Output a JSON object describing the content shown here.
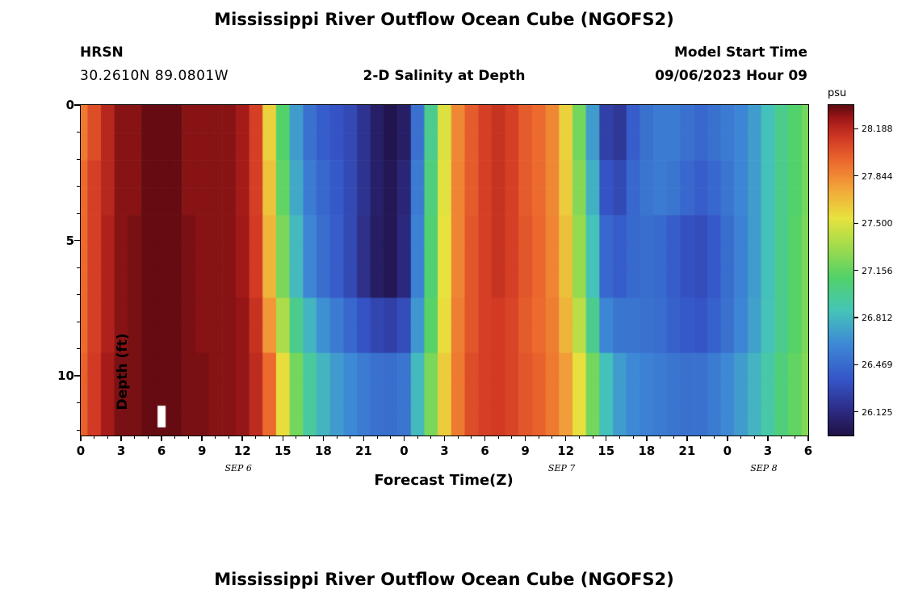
{
  "titles": {
    "main": "Mississippi River Outflow Ocean Cube (NGOFS2)",
    "station": "HRSN",
    "coords": "30.2610N  89.0801W",
    "subtitle": "2-D Salinity at Depth",
    "model_start_label": "Model Start Time",
    "model_start_value": "09/06/2023 Hour 09",
    "xlabel": "Forecast Time(Z)",
    "ylabel": "Depth (ft)",
    "colorbar_label": "psu",
    "next_panel_title": "Mississippi River Outflow Ocean Cube (NGOFS2)"
  },
  "chart_data": {
    "type": "heatmap",
    "title": "2-D Salinity at Depth",
    "xlabel": "Forecast Time(Z)",
    "ylabel": "Depth (ft)",
    "units": "psu",
    "time_range": [
      0,
      54
    ],
    "depth_range": [
      0,
      12.2
    ],
    "value_range": [
      25.953,
      28.36
    ],
    "x_minor_step": 1,
    "y_minor_step": 1,
    "x_ticks": [
      {
        "t": 0,
        "label": "0"
      },
      {
        "t": 3,
        "label": "3"
      },
      {
        "t": 6,
        "label": "6"
      },
      {
        "t": 9,
        "label": "9"
      },
      {
        "t": 12,
        "label": "12"
      },
      {
        "t": 15,
        "label": "15"
      },
      {
        "t": 18,
        "label": "18"
      },
      {
        "t": 21,
        "label": "21"
      },
      {
        "t": 24,
        "label": "0"
      },
      {
        "t": 27,
        "label": "3"
      },
      {
        "t": 30,
        "label": "6"
      },
      {
        "t": 33,
        "label": "9"
      },
      {
        "t": 36,
        "label": "12"
      },
      {
        "t": 39,
        "label": "15"
      },
      {
        "t": 42,
        "label": "18"
      },
      {
        "t": 45,
        "label": "21"
      },
      {
        "t": 48,
        "label": "0"
      },
      {
        "t": 51,
        "label": "3"
      },
      {
        "t": 54,
        "label": "6"
      }
    ],
    "date_labels": [
      {
        "t": 11.7,
        "label": "SEP 6"
      },
      {
        "t": 35.7,
        "label": "SEP 7"
      },
      {
        "t": 50.7,
        "label": "SEP 8"
      }
    ],
    "y_ticks": [
      {
        "d": 0,
        "label": "0"
      },
      {
        "d": 5,
        "label": "5"
      },
      {
        "d": 10,
        "label": "10"
      }
    ],
    "colorbar_ticks": [
      {
        "v": 28.188,
        "label": "28.188"
      },
      {
        "v": 27.844,
        "label": "27.844"
      },
      {
        "v": 27.5,
        "label": "27.500"
      },
      {
        "v": 27.156,
        "label": "27.156"
      },
      {
        "v": 26.812,
        "label": "26.812"
      },
      {
        "v": 26.469,
        "label": "26.469"
      },
      {
        "v": 26.125,
        "label": "26.125"
      }
    ],
    "colormap": [
      {
        "f": 0.0,
        "c": "#201045"
      },
      {
        "f": 0.08,
        "c": "#2d2d86"
      },
      {
        "f": 0.17,
        "c": "#3555c8"
      },
      {
        "f": 0.28,
        "c": "#3e8ad6"
      },
      {
        "f": 0.38,
        "c": "#45c5b8"
      },
      {
        "f": 0.48,
        "c": "#52d268"
      },
      {
        "f": 0.58,
        "c": "#a8dc4a"
      },
      {
        "f": 0.66,
        "c": "#e8e23e"
      },
      {
        "f": 0.75,
        "c": "#f2a43a"
      },
      {
        "f": 0.83,
        "c": "#ec6a2e"
      },
      {
        "f": 0.9,
        "c": "#d23a24"
      },
      {
        "f": 0.96,
        "c": "#a01818"
      },
      {
        "f": 1.0,
        "c": "#5e0a10"
      }
    ],
    "missing_cells": [
      {
        "t": 6,
        "depth_top": 11.1,
        "depth_bottom": 11.9,
        "half_width_hours": 0.3
      }
    ],
    "grid": {
      "rows": 12,
      "cols": 55,
      "values": [
        [
          27.9,
          28.05,
          28.2,
          28.3,
          28.3,
          28.35,
          28.35,
          28.35,
          28.3,
          28.3,
          28.3,
          28.3,
          28.25,
          28.1,
          27.6,
          27.1,
          26.7,
          26.5,
          26.4,
          26.35,
          26.3,
          26.18,
          26.05,
          25.98,
          26.05,
          26.5,
          27.0,
          27.5,
          27.85,
          28.0,
          28.1,
          28.15,
          28.1,
          28.0,
          27.95,
          27.85,
          27.6,
          27.2,
          26.7,
          26.25,
          26.2,
          26.4,
          26.5,
          26.55,
          26.55,
          26.5,
          26.45,
          26.5,
          26.55,
          26.6,
          26.7,
          26.85,
          27.0,
          27.1,
          27.2
        ],
        [
          27.9,
          28.05,
          28.2,
          28.3,
          28.3,
          28.35,
          28.35,
          28.35,
          28.3,
          28.3,
          28.3,
          28.3,
          28.25,
          28.1,
          27.6,
          27.1,
          26.7,
          26.5,
          26.4,
          26.35,
          26.3,
          26.18,
          26.05,
          25.98,
          26.05,
          26.5,
          27.0,
          27.5,
          27.85,
          28.0,
          28.1,
          28.15,
          28.1,
          28.0,
          27.95,
          27.85,
          27.6,
          27.2,
          26.7,
          26.25,
          26.2,
          26.4,
          26.5,
          26.55,
          26.55,
          26.5,
          26.45,
          26.5,
          26.55,
          26.6,
          26.7,
          26.85,
          27.0,
          27.1,
          27.2
        ],
        [
          27.95,
          28.1,
          28.2,
          28.3,
          28.3,
          28.35,
          28.35,
          28.35,
          28.3,
          28.3,
          28.3,
          28.3,
          28.25,
          28.1,
          27.65,
          27.15,
          26.75,
          26.55,
          26.45,
          26.38,
          26.3,
          26.18,
          26.06,
          26.0,
          26.1,
          26.55,
          27.05,
          27.52,
          27.86,
          28.0,
          28.1,
          28.15,
          28.1,
          28.0,
          27.95,
          27.85,
          27.62,
          27.25,
          26.78,
          26.35,
          26.3,
          26.45,
          26.52,
          26.55,
          26.52,
          26.45,
          26.4,
          26.45,
          26.52,
          26.6,
          26.7,
          26.85,
          27.0,
          27.1,
          27.2
        ],
        [
          27.95,
          28.1,
          28.2,
          28.3,
          28.3,
          28.35,
          28.35,
          28.35,
          28.3,
          28.3,
          28.3,
          28.3,
          28.25,
          28.1,
          27.65,
          27.15,
          26.75,
          26.55,
          26.45,
          26.38,
          26.3,
          26.18,
          26.06,
          26.0,
          26.1,
          26.55,
          27.05,
          27.52,
          27.86,
          28.0,
          28.1,
          28.15,
          28.1,
          28.0,
          27.95,
          27.85,
          27.62,
          27.25,
          26.78,
          26.35,
          26.3,
          26.45,
          26.52,
          26.55,
          26.52,
          26.45,
          26.4,
          26.45,
          26.52,
          26.6,
          26.7,
          26.85,
          27.0,
          27.1,
          27.2
        ],
        [
          27.95,
          28.1,
          28.22,
          28.3,
          28.32,
          28.35,
          28.35,
          28.35,
          28.32,
          28.3,
          28.3,
          28.3,
          28.26,
          28.12,
          27.7,
          27.22,
          26.82,
          26.6,
          26.48,
          26.4,
          26.3,
          26.16,
          26.04,
          26.0,
          26.12,
          26.58,
          27.08,
          27.54,
          27.86,
          28.02,
          28.1,
          28.15,
          28.1,
          28.02,
          27.96,
          27.86,
          27.66,
          27.3,
          26.86,
          26.45,
          26.4,
          26.46,
          26.48,
          26.46,
          26.4,
          26.34,
          26.32,
          26.38,
          26.48,
          26.58,
          26.7,
          26.85,
          27.0,
          27.12,
          27.22
        ],
        [
          27.95,
          28.1,
          28.22,
          28.3,
          28.32,
          28.35,
          28.35,
          28.35,
          28.32,
          28.3,
          28.3,
          28.3,
          28.26,
          28.12,
          27.7,
          27.22,
          26.82,
          26.6,
          26.48,
          26.4,
          26.3,
          26.16,
          26.04,
          26.0,
          26.12,
          26.58,
          27.08,
          27.54,
          27.86,
          28.02,
          28.1,
          28.15,
          28.1,
          28.02,
          27.96,
          27.86,
          27.66,
          27.3,
          26.86,
          26.45,
          26.4,
          26.46,
          26.48,
          26.46,
          26.4,
          26.34,
          26.32,
          26.38,
          26.48,
          26.58,
          26.7,
          26.85,
          27.0,
          27.12,
          27.22
        ],
        [
          27.95,
          28.1,
          28.22,
          28.3,
          28.32,
          28.35,
          28.35,
          28.35,
          28.32,
          28.3,
          28.3,
          28.3,
          28.26,
          28.12,
          27.7,
          27.22,
          26.82,
          26.6,
          26.48,
          26.4,
          26.3,
          26.16,
          26.04,
          26.0,
          26.12,
          26.58,
          27.08,
          27.54,
          27.86,
          28.02,
          28.1,
          28.15,
          28.1,
          28.02,
          27.96,
          27.86,
          27.66,
          27.3,
          26.86,
          26.45,
          26.4,
          26.46,
          26.48,
          26.46,
          26.4,
          26.34,
          26.32,
          26.38,
          26.48,
          26.58,
          26.7,
          26.85,
          27.0,
          27.12,
          27.22
        ],
        [
          27.95,
          28.1,
          28.22,
          28.3,
          28.32,
          28.35,
          28.35,
          28.35,
          28.32,
          28.3,
          28.3,
          28.3,
          28.28,
          28.15,
          27.8,
          27.36,
          27.0,
          26.8,
          26.65,
          26.55,
          26.45,
          26.35,
          26.28,
          26.25,
          26.32,
          26.68,
          27.12,
          27.56,
          27.88,
          28.02,
          28.1,
          28.12,
          28.08,
          28.0,
          27.95,
          27.88,
          27.7,
          27.4,
          27.0,
          26.6,
          26.52,
          26.52,
          26.5,
          26.48,
          26.42,
          26.38,
          26.36,
          26.42,
          26.5,
          26.6,
          26.72,
          26.86,
          27.0,
          27.12,
          27.22
        ],
        [
          27.95,
          28.1,
          28.22,
          28.3,
          28.32,
          28.35,
          28.35,
          28.35,
          28.32,
          28.3,
          28.3,
          28.3,
          28.28,
          28.15,
          27.8,
          27.36,
          27.0,
          26.8,
          26.65,
          26.55,
          26.45,
          26.35,
          26.28,
          26.25,
          26.32,
          26.68,
          27.12,
          27.56,
          27.88,
          28.02,
          28.1,
          28.12,
          28.08,
          28.0,
          27.95,
          27.88,
          27.7,
          27.4,
          27.0,
          26.6,
          26.52,
          26.52,
          26.5,
          26.48,
          26.42,
          26.38,
          26.36,
          26.42,
          26.5,
          26.6,
          26.72,
          26.86,
          27.0,
          27.12,
          27.22
        ],
        [
          27.98,
          28.12,
          28.25,
          28.32,
          28.32,
          28.35,
          28.35,
          28.35,
          28.32,
          28.32,
          28.3,
          28.3,
          28.28,
          28.18,
          27.95,
          27.56,
          27.2,
          26.95,
          26.8,
          26.7,
          26.62,
          26.55,
          26.5,
          26.48,
          26.52,
          26.82,
          27.22,
          27.62,
          27.9,
          28.05,
          28.1,
          28.12,
          28.08,
          28.02,
          27.98,
          27.9,
          27.78,
          27.55,
          27.2,
          26.85,
          26.7,
          26.62,
          26.58,
          26.55,
          26.52,
          26.5,
          26.5,
          26.55,
          26.62,
          26.7,
          26.8,
          26.92,
          27.05,
          27.15,
          27.25
        ],
        [
          27.98,
          28.12,
          28.25,
          28.32,
          28.32,
          28.35,
          28.35,
          28.35,
          28.32,
          28.32,
          28.3,
          28.3,
          28.28,
          28.18,
          27.95,
          27.56,
          27.2,
          26.95,
          26.8,
          26.7,
          26.62,
          26.55,
          26.5,
          26.48,
          26.52,
          26.82,
          27.22,
          27.62,
          27.9,
          28.05,
          28.1,
          28.12,
          28.08,
          28.02,
          27.98,
          27.9,
          27.78,
          27.55,
          27.2,
          26.85,
          26.7,
          26.62,
          26.58,
          26.55,
          26.52,
          26.5,
          26.5,
          26.55,
          26.62,
          26.7,
          26.8,
          26.92,
          27.05,
          27.15,
          27.25
        ],
        [
          27.98,
          28.12,
          28.25,
          28.32,
          28.32,
          28.35,
          28.35,
          28.35,
          28.32,
          28.32,
          28.3,
          28.3,
          28.28,
          28.18,
          27.95,
          27.56,
          27.2,
          26.95,
          26.8,
          26.7,
          26.62,
          26.55,
          26.5,
          26.48,
          26.52,
          26.82,
          27.22,
          27.62,
          27.9,
          28.05,
          28.1,
          28.12,
          28.08,
          28.02,
          27.98,
          27.9,
          27.78,
          27.55,
          27.2,
          26.85,
          26.7,
          26.62,
          26.58,
          26.55,
          26.52,
          26.5,
          26.5,
          26.55,
          26.62,
          26.7,
          26.8,
          26.92,
          27.05,
          27.15,
          27.25
        ]
      ]
    }
  }
}
